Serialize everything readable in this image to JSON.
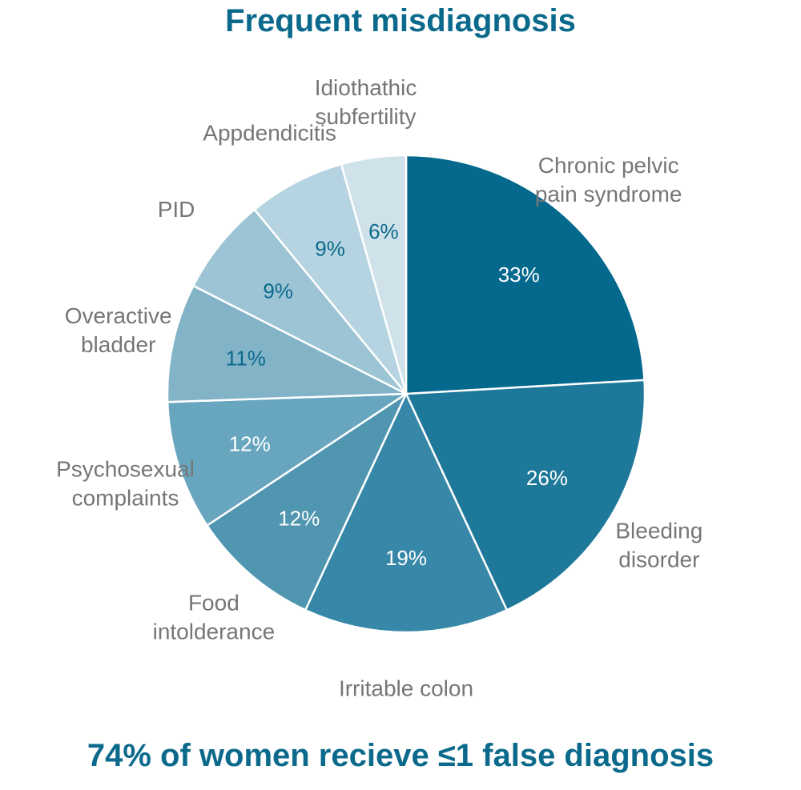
{
  "colors": {
    "title": "#0b6a8c",
    "category_label": "#767676",
    "slice_border": "#ffffff",
    "value_label_light": "#ffffff",
    "value_label_dark": "#0b6a8c"
  },
  "chart_data": {
    "type": "pie",
    "title": "Frequent misdiagnosis",
    "subtitle": "74% of women recieve ≤1 false diagnosis",
    "value_format": "percent",
    "slices": [
      {
        "label": [
          "Chronic pelvic",
          "pain syndrome"
        ],
        "value": 33,
        "display": "33%",
        "color": "#05688d",
        "value_label_color": "#ffffff"
      },
      {
        "label": [
          "Bleeding",
          "disorder"
        ],
        "value": 26,
        "display": "26%",
        "color": "#1e7899",
        "value_label_color": "#ffffff"
      },
      {
        "label": [
          "Irritable colon"
        ],
        "value": 19,
        "display": "19%",
        "color": "#3788a8",
        "value_label_color": "#ffffff"
      },
      {
        "label": [
          "Food",
          "intolderance"
        ],
        "value": 12,
        "display": "12%",
        "color": "#5096b1",
        "value_label_color": "#ffffff"
      },
      {
        "label": [
          "Psychosexual",
          "complaints"
        ],
        "value": 12,
        "display": "12%",
        "color": "#68a6bf",
        "value_label_color": "#ffffff"
      },
      {
        "label": [
          "Overactive",
          "bladder"
        ],
        "value": 11,
        "display": "11%",
        "color": "#82b3c7",
        "value_label_color": "#0b6a8c"
      },
      {
        "label": [
          "PID"
        ],
        "value": 9,
        "display": "9%",
        "color": "#9cc4d4",
        "value_label_color": "#0b6a8c"
      },
      {
        "label": [
          "Appdendicitis"
        ],
        "value": 9,
        "display": "9%",
        "color": "#b5d3e0",
        "value_label_color": "#0b6a8c"
      },
      {
        "label": [
          "Idiothathic",
          "subfertility"
        ],
        "value": 6,
        "display": "6%",
        "color": "#cfe1e9",
        "value_label_color": "#0b6a8c"
      }
    ]
  }
}
